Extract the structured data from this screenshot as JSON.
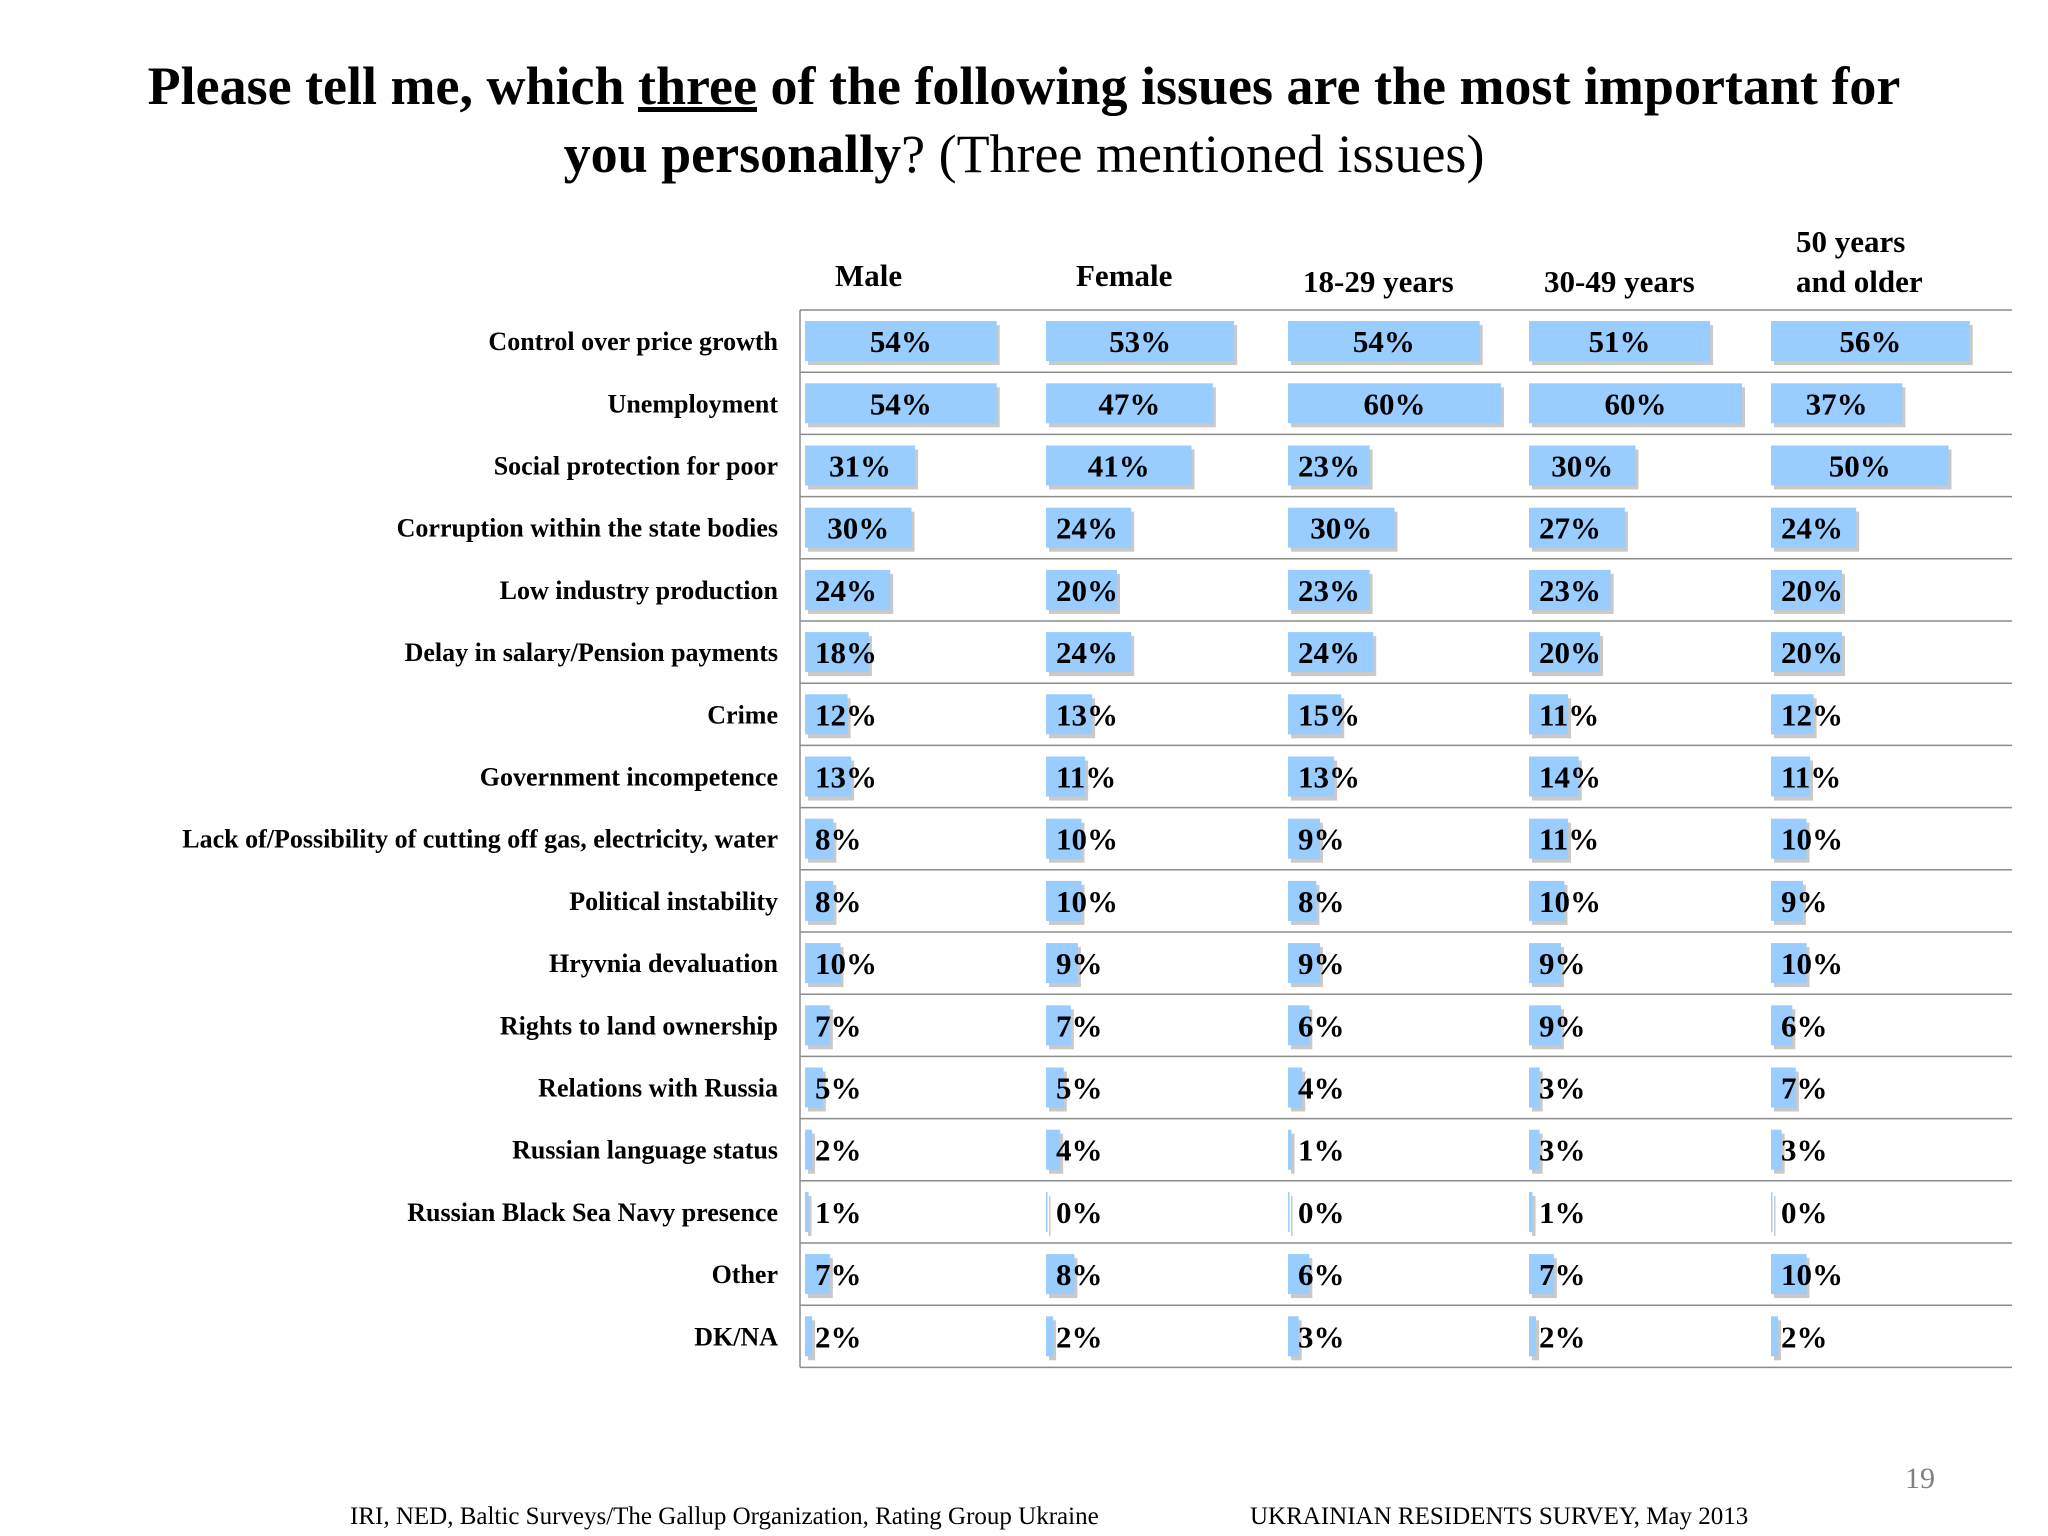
{
  "slide": {
    "title_part1": "Please tell me, which ",
    "title_emphasis": "three",
    "title_part2": " of the following issues are the most important for ",
    "title_part3": "you personally",
    "title_part4": "? (Three mentioned issues)",
    "page_number": "19",
    "footer_left": "IRI, NED,  Baltic Surveys/The Gallup Organization, Rating Group Ukraine",
    "footer_right": "UKRAINIAN RESIDENTS SURVEY, May  2013"
  },
  "colors": {
    "bar_fill": "#99ccff",
    "bar_shadow": "#c9c9c9",
    "divider": "#8c8c8c",
    "text": "#000000"
  },
  "chart_data": {
    "type": "bar",
    "orientation": "horizontal",
    "unit": "%",
    "xlim": [
      0,
      100
    ],
    "grid": false,
    "legend": "none",
    "categories": [
      "Control over price growth",
      "Unemployment",
      "Social protection for poor",
      "Corruption within the state bodies",
      "Low industry production",
      "Delay in salary/Pension payments",
      "Crime",
      "Government incompetence",
      "Lack of/Possibility of cutting off gas, electricity, water",
      "Political instability",
      "Hryvnia devaluation",
      "Rights to land ownership",
      "Relations with Russia",
      "Russian language status",
      "Russian Black Sea Navy presence",
      "Other",
      "DK/NA"
    ],
    "series": [
      {
        "name": "Male",
        "values": [
          54,
          54,
          31,
          30,
          24,
          18,
          12,
          13,
          8,
          8,
          10,
          7,
          5,
          2,
          1,
          7,
          2
        ]
      },
      {
        "name": "Female",
        "values": [
          53,
          47,
          41,
          24,
          20,
          24,
          13,
          11,
          10,
          10,
          9,
          7,
          5,
          4,
          0,
          8,
          2
        ]
      },
      {
        "name": "18-29 years",
        "values": [
          54,
          60,
          23,
          30,
          23,
          24,
          15,
          13,
          9,
          8,
          9,
          6,
          4,
          1,
          0,
          6,
          3
        ]
      },
      {
        "name": "30-49 years",
        "values": [
          51,
          60,
          30,
          27,
          23,
          20,
          11,
          14,
          11,
          10,
          9,
          9,
          3,
          3,
          1,
          7,
          2
        ]
      },
      {
        "name": "50 years and older",
        "values": [
          56,
          37,
          50,
          24,
          20,
          20,
          12,
          11,
          10,
          9,
          10,
          6,
          7,
          3,
          0,
          10,
          2
        ]
      }
    ]
  }
}
